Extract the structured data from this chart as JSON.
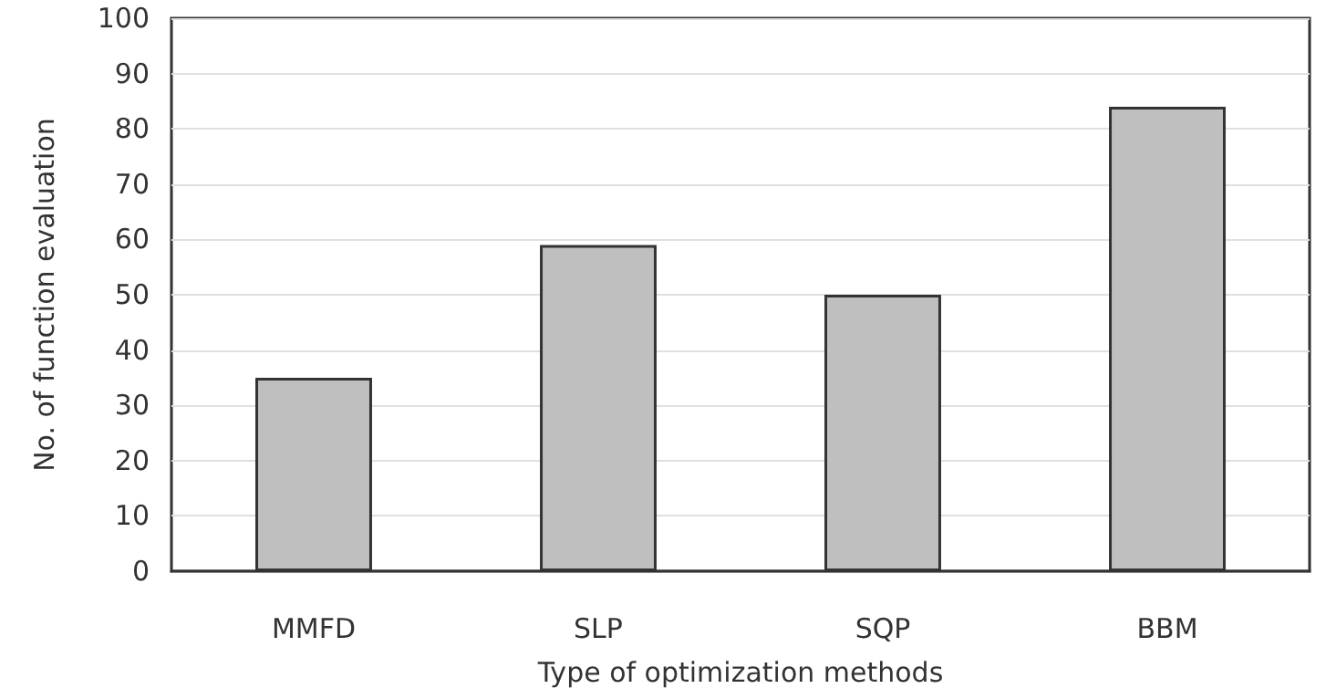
{
  "chart_data": {
    "type": "bar",
    "xlabel": "Type of optimization methods",
    "ylabel": "No. of function evaluation",
    "categories": [
      "MMFD",
      "SLP",
      "SQP",
      "BBM"
    ],
    "values": [
      35,
      59,
      50,
      84
    ],
    "color": "#bfbfbf",
    "ylim": [
      0,
      100
    ],
    "yticks": [
      0,
      10,
      20,
      30,
      40,
      50,
      60,
      70,
      80,
      90,
      100
    ],
    "grid": "y"
  }
}
